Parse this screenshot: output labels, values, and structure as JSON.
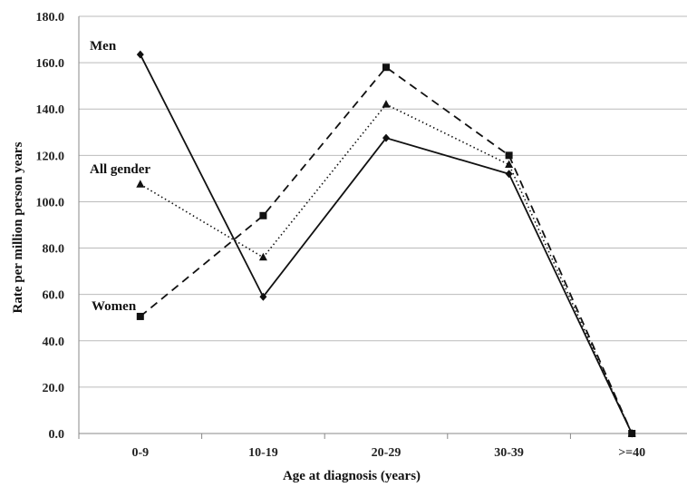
{
  "chart_data": {
    "type": "line",
    "title": "",
    "xlabel": "Age at diagnosis (years)",
    "ylabel": "Rate per million person years",
    "categories": [
      "0-9",
      "10-19",
      "20-29",
      "30-39",
      ">=40"
    ],
    "ylim": [
      0,
      180
    ],
    "yticks": [
      "0.0",
      "20.0",
      "40.0",
      "60.0",
      "80.0",
      "100.0",
      "120.0",
      "140.0",
      "160.0",
      "180.0"
    ],
    "grid": "horizontal",
    "series": [
      {
        "name": "Men",
        "marker": "diamond",
        "line_style": "solid",
        "values": [
          163.5,
          59.0,
          127.5,
          112.0,
          0.0
        ]
      },
      {
        "name": "All gender",
        "marker": "triangle",
        "line_style": "dotted",
        "values": [
          107.5,
          76.0,
          142.0,
          116.0,
          0.0
        ]
      },
      {
        "name": "Women",
        "marker": "square",
        "line_style": "dashed",
        "values": [
          50.5,
          94.0,
          158.0,
          120.0,
          0.0
        ]
      }
    ]
  },
  "colors": {
    "series": "#111111",
    "grid": "#bbbbbb",
    "axis": "#888888"
  }
}
